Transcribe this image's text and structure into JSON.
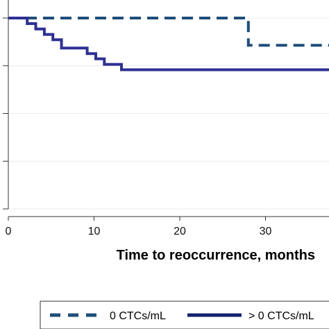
{
  "chart_data": {
    "type": "line",
    "subtype": "kaplan-meier-step",
    "xlabel": "Time to reoccurrence, months",
    "ylabel": "",
    "title": "",
    "xlim": [
      0,
      38
    ],
    "ylim": [
      0,
      1
    ],
    "x_ticks": [
      0,
      10,
      20,
      30
    ],
    "x_tick_labels": [
      "0",
      "10",
      "20",
      "30"
    ],
    "grid": true,
    "legend_position": "bottom",
    "series": [
      {
        "name": "0 CTCs/mL",
        "style": "dashed",
        "color": "#1f4e79",
        "points": [
          [
            0,
            1.0
          ],
          [
            28,
            1.0
          ],
          [
            28,
            0.857
          ],
          [
            38,
            0.857
          ]
        ]
      },
      {
        "name": "> 0 CTCs/mL",
        "style": "solid",
        "color": "#2e3192",
        "points": [
          [
            0,
            1.0
          ],
          [
            2.2,
            1.0
          ],
          [
            2.2,
            0.971
          ],
          [
            3.2,
            0.971
          ],
          [
            3.2,
            0.943
          ],
          [
            4.2,
            0.943
          ],
          [
            4.2,
            0.914
          ],
          [
            5.2,
            0.914
          ],
          [
            5.2,
            0.886
          ],
          [
            6.2,
            0.886
          ],
          [
            6.2,
            0.843
          ],
          [
            9.2,
            0.843
          ],
          [
            9.2,
            0.814
          ],
          [
            10.2,
            0.814
          ],
          [
            10.2,
            0.786
          ],
          [
            11.2,
            0.786
          ],
          [
            11.2,
            0.757
          ],
          [
            13.2,
            0.757
          ],
          [
            13.2,
            0.729
          ],
          [
            38,
            0.729
          ]
        ]
      }
    ]
  }
}
